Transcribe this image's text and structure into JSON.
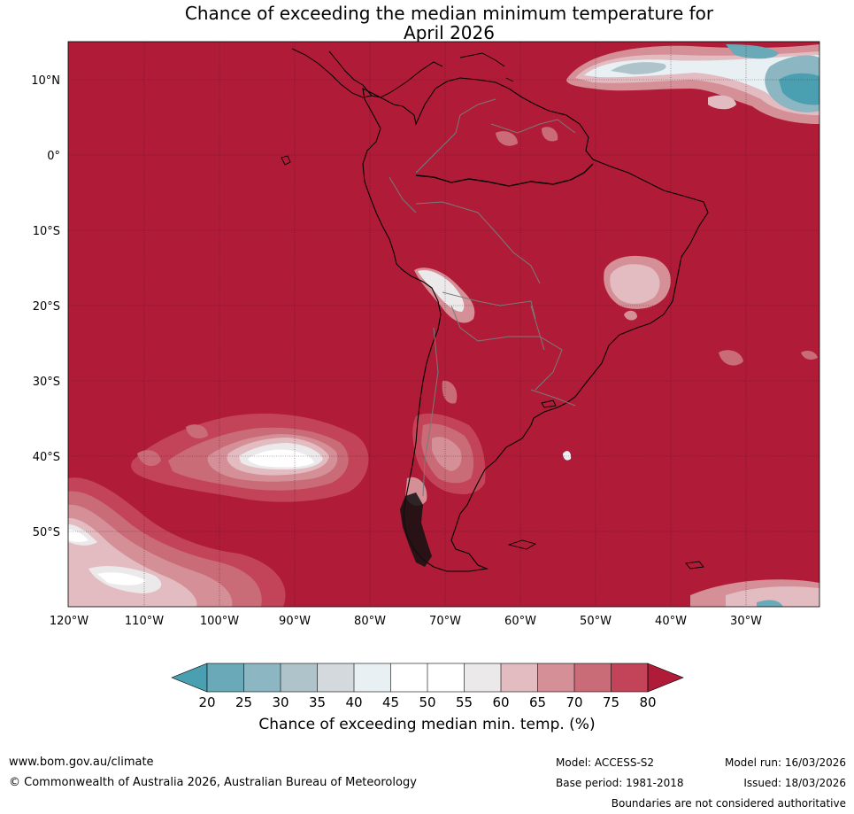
{
  "title": {
    "line1": "Chance of exceeding the median minimum temperature for",
    "line2": "April 2026"
  },
  "map": {
    "lat_labels": [
      "10°N",
      "0°",
      "10°S",
      "20°S",
      "30°S",
      "40°S",
      "50°S"
    ],
    "lon_labels": [
      "120°W",
      "110°W",
      "100°W",
      "90°W",
      "80°W",
      "70°W",
      "60°W",
      "50°W",
      "40°W",
      "30°W"
    ],
    "colors": {
      "c80plus": "#b01c38",
      "c75": "#c34458",
      "c70": "#ca6b78",
      "c65": "#d58f97",
      "c60": "#e2bcc1",
      "c55": "#ebe9ea",
      "c50": "#ffffff",
      "c45": "#ffffff",
      "c40": "#e9f0f3",
      "c35": "#d3d9dc",
      "c30": "#aec4ca",
      "c25": "#8bb6c2",
      "c20": "#6aa9b7",
      "below20": "#4aa0b0",
      "land_outline": "#000000",
      "border": "#7a7a7a"
    }
  },
  "colorbar": {
    "ticks": [
      "20",
      "25",
      "30",
      "35",
      "40",
      "45",
      "50",
      "55",
      "60",
      "65",
      "70",
      "75",
      "80"
    ],
    "label": "Chance of exceeding median min. temp. (%)"
  },
  "footer": {
    "website": "www.bom.gov.au/climate",
    "copyright": "© Commonwealth of Australia 2026, Australian Bureau of Meteorology",
    "model": "Model: ACCESS-S2",
    "base_period": "Base period: 1981-2018",
    "model_run": "Model run: 16/03/2026",
    "issued": "Issued: 18/03/2026",
    "disclaimer": "Boundaries are not considered authoritative"
  }
}
